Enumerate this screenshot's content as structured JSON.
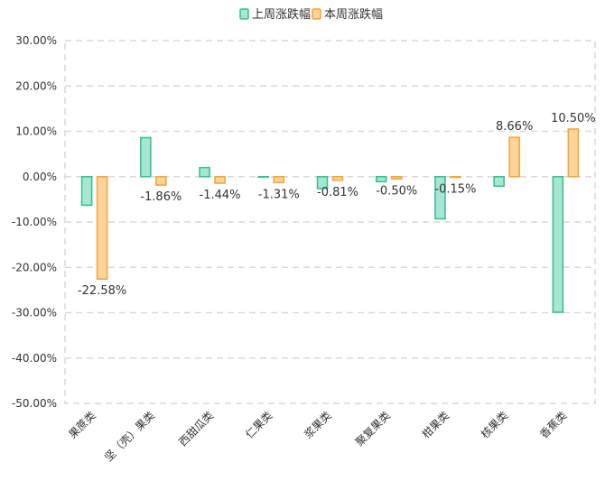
{
  "chart_data": {
    "type": "bar",
    "title": "",
    "xlabel": "",
    "ylabel": "",
    "ylim": [
      -50,
      30
    ],
    "yticks": [
      30,
      20,
      10,
      0,
      -10,
      -20,
      -30,
      -40,
      -50
    ],
    "ytick_labels": [
      "30.00%",
      "20.00%",
      "10.00%",
      "0.00%",
      "-10.00%",
      "-20.00%",
      "-30.00%",
      "-40.00%",
      "-50.00%"
    ],
    "categories": [
      "果蔗类",
      "坚（壳）果类",
      "西甜瓜类",
      "仁果类",
      "浆果类",
      "聚复果类",
      "柑果类",
      "核果类",
      "香蕉类"
    ],
    "legend_position": "top-center",
    "grid": "dashed",
    "series": [
      {
        "name": "上周涨跌幅",
        "values": [
          -6.3,
          8.6,
          2.0,
          0.0,
          -2.6,
          -1.1,
          -9.3,
          -2.1,
          -29.9
        ],
        "fill": "#a8e6d4",
        "stroke": "#3dbf95",
        "show_labels": false
      },
      {
        "name": "本周涨跌幅",
        "values": [
          -22.58,
          -1.86,
          -1.44,
          -1.31,
          -0.81,
          -0.5,
          -0.15,
          8.66,
          10.5
        ],
        "labels": [
          "-22.58%",
          "-1.86%",
          "-1.44%",
          "-1.31%",
          "-0.81%",
          "-0.50%",
          "-0.15%",
          "8.66%",
          "10.50%"
        ],
        "fill": "#ffd49a",
        "stroke": "#f0a83e",
        "show_labels": true
      }
    ]
  }
}
